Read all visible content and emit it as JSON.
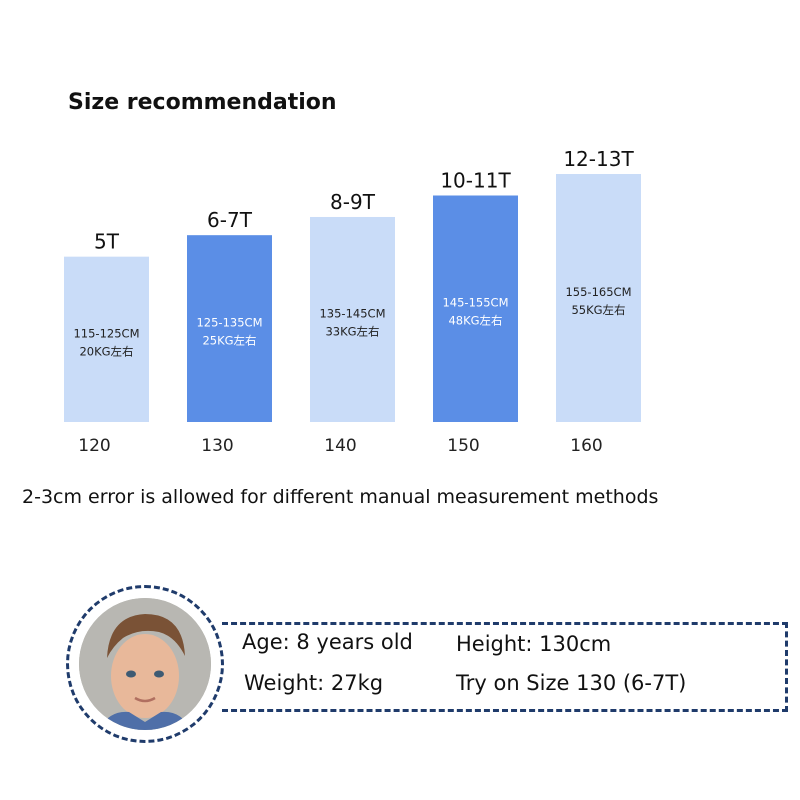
{
  "chart_data": {
    "type": "bar",
    "title": "Size recommendation",
    "categories": [
      "120",
      "130",
      "140",
      "150",
      "160"
    ],
    "values": [
      1.0,
      1.13,
      1.24,
      1.37,
      1.5
    ],
    "age_labels": [
      "5T",
      "6-7T",
      "8-9T",
      "10-11T",
      "12-13T"
    ],
    "height_ranges": [
      "115-125CM",
      "125-135CM",
      "135-145CM",
      "145-155CM",
      "155-165CM"
    ],
    "weights": [
      "20KG左右",
      "25KG左右",
      "33KG左右",
      "48KG左右",
      "55KG左右"
    ],
    "bar_colors": [
      "#c9dcf8",
      "#5b8ee6",
      "#c9dcf8",
      "#5b8ee6",
      "#c9dcf8"
    ],
    "text_colors": [
      "#222222",
      "#ffffff",
      "#222222",
      "#ffffff",
      "#222222"
    ],
    "ylim": [
      0,
      1.5
    ],
    "grid": false,
    "legend": "none"
  },
  "note": "2-3cm error is allowed for different manual measurement methods",
  "profile": {
    "age": "Age: 8 years old",
    "height": "Height: 130cm",
    "weight": "Weight: 27kg",
    "try": "Try on Size 130 (6-7T)"
  },
  "colors": {
    "accent": "#5b8ee6",
    "light": "#c9dcf8",
    "border": "#1f3b6b"
  }
}
